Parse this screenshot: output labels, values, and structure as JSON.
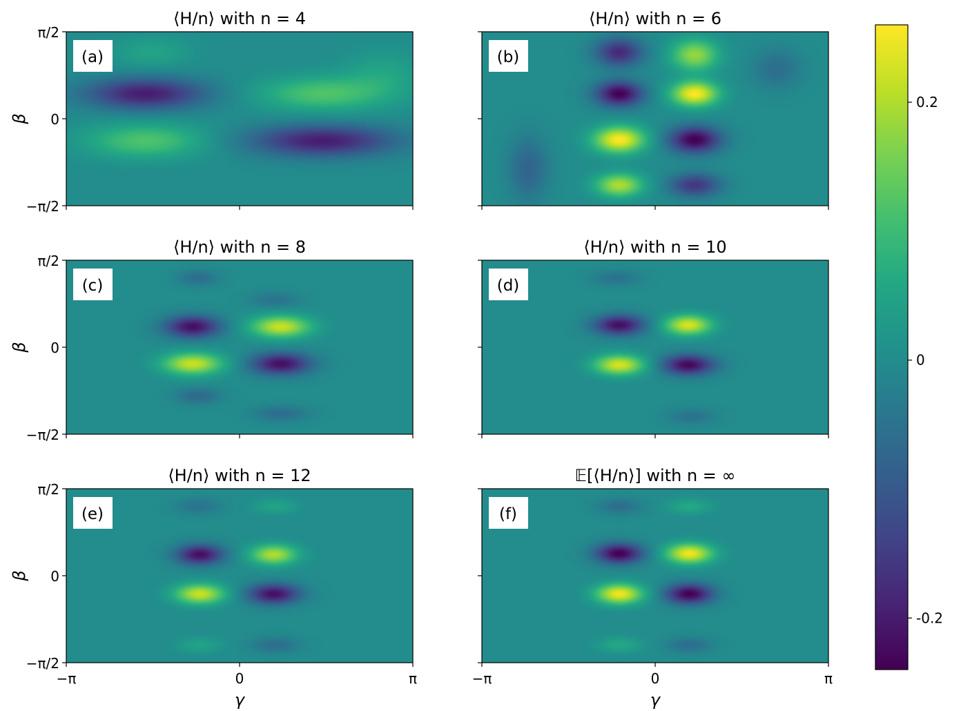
{
  "chart_data": {
    "type": "heatmap",
    "colormap": "viridis",
    "x_axis": {
      "label": "γ",
      "range": [
        -3.14159,
        3.14159
      ],
      "tick_labels": [
        "−π",
        "0",
        "π"
      ]
    },
    "y_axis": {
      "label": "β",
      "range": [
        -1.5708,
        1.5708
      ],
      "tick_labels": [
        "−π/2",
        "0",
        "π/2"
      ]
    },
    "colorbar": {
      "range": [
        -0.24,
        0.26
      ],
      "ticks": [
        -0.2,
        0,
        0.2
      ],
      "tick_labels": [
        "-0.2",
        "0",
        "0.2"
      ]
    },
    "panels": [
      {
        "tag": "(a)",
        "title": "⟨H/n⟩ with n = 4",
        "blobs": [
          {
            "x": -1.7,
            "y": 0.45,
            "value": -0.2,
            "sx": 0.75,
            "sy": 0.2
          },
          {
            "x": -1.7,
            "y": -0.4,
            "value": 0.12,
            "sx": 0.75,
            "sy": 0.22
          },
          {
            "x": 1.5,
            "y": 0.45,
            "value": 0.12,
            "sx": 0.8,
            "sy": 0.22
          },
          {
            "x": 1.5,
            "y": -0.4,
            "value": -0.2,
            "sx": 0.9,
            "sy": 0.2
          },
          {
            "x": -1.6,
            "y": 1.2,
            "value": 0.05,
            "sx": 0.5,
            "sy": 0.2
          },
          {
            "x": 2.6,
            "y": 0.8,
            "value": 0.05,
            "sx": 0.5,
            "sy": 0.3
          }
        ]
      },
      {
        "tag": "(b)",
        "title": "⟨H/n⟩ with n = 6",
        "blobs": [
          {
            "x": -0.65,
            "y": 0.45,
            "value": -0.24,
            "sx": 0.3,
            "sy": 0.16
          },
          {
            "x": -0.65,
            "y": -0.38,
            "value": 0.26,
            "sx": 0.33,
            "sy": 0.17
          },
          {
            "x": 0.72,
            "y": 0.45,
            "value": 0.26,
            "sx": 0.3,
            "sy": 0.16
          },
          {
            "x": 0.72,
            "y": -0.38,
            "value": -0.24,
            "sx": 0.33,
            "sy": 0.17
          },
          {
            "x": -0.65,
            "y": 1.2,
            "value": -0.18,
            "sx": 0.3,
            "sy": 0.18
          },
          {
            "x": 0.72,
            "y": 1.15,
            "value": 0.18,
            "sx": 0.3,
            "sy": 0.2
          },
          {
            "x": -0.65,
            "y": -1.2,
            "value": 0.2,
            "sx": 0.3,
            "sy": 0.15
          },
          {
            "x": 0.72,
            "y": -1.2,
            "value": -0.16,
            "sx": 0.32,
            "sy": 0.15
          },
          {
            "x": -2.3,
            "y": -0.9,
            "value": -0.08,
            "sx": 0.25,
            "sy": 0.4
          },
          {
            "x": 2.2,
            "y": 0.9,
            "value": -0.06,
            "sx": 0.3,
            "sy": 0.25
          }
        ]
      },
      {
        "tag": "(c)",
        "title": "⟨H/n⟩ with n = 8",
        "blobs": [
          {
            "x": -0.85,
            "y": 0.37,
            "value": -0.22,
            "sx": 0.35,
            "sy": 0.14
          },
          {
            "x": -0.85,
            "y": -0.3,
            "value": 0.22,
            "sx": 0.38,
            "sy": 0.14
          },
          {
            "x": 0.75,
            "y": 0.37,
            "value": 0.22,
            "sx": 0.38,
            "sy": 0.14
          },
          {
            "x": 0.75,
            "y": -0.3,
            "value": -0.22,
            "sx": 0.38,
            "sy": 0.14
          },
          {
            "x": -0.75,
            "y": 1.25,
            "value": -0.06,
            "sx": 0.25,
            "sy": 0.1
          },
          {
            "x": 0.65,
            "y": 0.85,
            "value": -0.05,
            "sx": 0.3,
            "sy": 0.1
          },
          {
            "x": -0.75,
            "y": -0.88,
            "value": -0.07,
            "sx": 0.28,
            "sy": 0.1
          },
          {
            "x": 0.75,
            "y": -1.2,
            "value": -0.06,
            "sx": 0.35,
            "sy": 0.1
          }
        ]
      },
      {
        "tag": "(d)",
        "title": "⟨H/n⟩ with n = 10",
        "blobs": [
          {
            "x": -0.65,
            "y": 0.4,
            "value": -0.22,
            "sx": 0.32,
            "sy": 0.13
          },
          {
            "x": -0.65,
            "y": -0.32,
            "value": 0.23,
            "sx": 0.32,
            "sy": 0.13
          },
          {
            "x": 0.6,
            "y": 0.4,
            "value": 0.23,
            "sx": 0.3,
            "sy": 0.13
          },
          {
            "x": 0.6,
            "y": -0.32,
            "value": -0.23,
            "sx": 0.33,
            "sy": 0.13
          },
          {
            "x": -0.7,
            "y": 1.25,
            "value": -0.05,
            "sx": 0.3,
            "sy": 0.1
          },
          {
            "x": 0.65,
            "y": -1.25,
            "value": -0.05,
            "sx": 0.3,
            "sy": 0.1
          }
        ]
      },
      {
        "tag": "(e)",
        "title": "⟨H/n⟩ with n = 12",
        "blobs": [
          {
            "x": -0.72,
            "y": 0.38,
            "value": -0.22,
            "sx": 0.3,
            "sy": 0.13
          },
          {
            "x": -0.72,
            "y": -0.33,
            "value": 0.22,
            "sx": 0.32,
            "sy": 0.13
          },
          {
            "x": 0.62,
            "y": 0.38,
            "value": 0.2,
            "sx": 0.3,
            "sy": 0.13
          },
          {
            "x": 0.62,
            "y": -0.33,
            "value": -0.22,
            "sx": 0.33,
            "sy": 0.13
          },
          {
            "x": -0.75,
            "y": 1.25,
            "value": -0.05,
            "sx": 0.28,
            "sy": 0.1
          },
          {
            "x": 0.65,
            "y": 1.25,
            "value": 0.05,
            "sx": 0.28,
            "sy": 0.1
          },
          {
            "x": 0.65,
            "y": -1.25,
            "value": -0.06,
            "sx": 0.3,
            "sy": 0.1
          },
          {
            "x": -0.72,
            "y": -1.25,
            "value": 0.05,
            "sx": 0.28,
            "sy": 0.1
          }
        ]
      },
      {
        "tag": "(f)",
        "title": "𝔼[⟨H/n⟩] with n = ∞",
        "blobs": [
          {
            "x": -0.65,
            "y": 0.4,
            "value": -0.24,
            "sx": 0.3,
            "sy": 0.13
          },
          {
            "x": -0.65,
            "y": -0.33,
            "value": 0.25,
            "sx": 0.3,
            "sy": 0.13
          },
          {
            "x": 0.62,
            "y": 0.4,
            "value": 0.25,
            "sx": 0.3,
            "sy": 0.13
          },
          {
            "x": 0.62,
            "y": -0.33,
            "value": -0.24,
            "sx": 0.3,
            "sy": 0.13
          },
          {
            "x": -0.65,
            "y": 1.25,
            "value": -0.06,
            "sx": 0.28,
            "sy": 0.1
          },
          {
            "x": 0.62,
            "y": 1.25,
            "value": 0.06,
            "sx": 0.28,
            "sy": 0.1
          },
          {
            "x": -0.65,
            "y": -1.25,
            "value": 0.06,
            "sx": 0.28,
            "sy": 0.1
          },
          {
            "x": 0.62,
            "y": -1.25,
            "value": -0.06,
            "sx": 0.28,
            "sy": 0.1
          }
        ]
      }
    ]
  }
}
